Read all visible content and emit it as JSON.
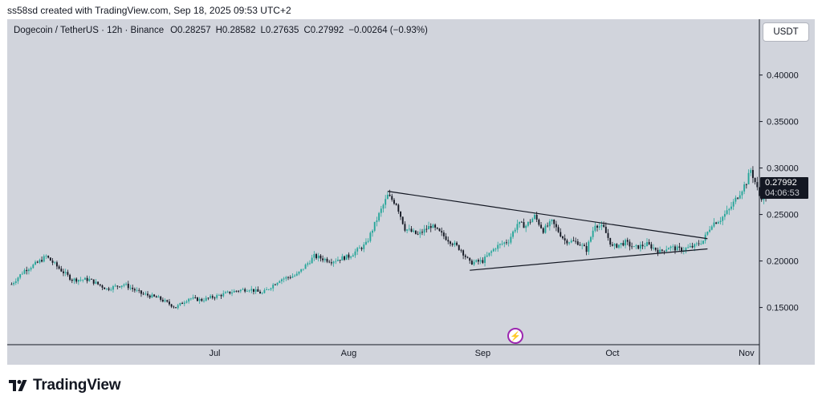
{
  "caption": "ss58sd created with TradingView.com, Sep 18, 2025 09:53 UTC+2",
  "legend": {
    "symbol": "Dogecoin / TetherUS · 12h · Binance",
    "open": "O0.28257",
    "high": "H0.28582",
    "low": "L0.27635",
    "close": "C0.27992",
    "change": "−0.00264 (−0.93%)"
  },
  "currency": "USDT",
  "last_price": "0.27992",
  "countdown": "04:06:53",
  "brand": "TradingView",
  "colors": {
    "background": "#d1d4dc",
    "up_candle": "#26a69a",
    "down_candle": "#131722",
    "axis_line": "#131722",
    "price_tag": "#131722",
    "event_badge": "#9c27b0"
  },
  "icons": [
    "flash-icon",
    "tradingview-logo-icon"
  ],
  "chart_data": {
    "type": "candlestick",
    "interval": "12h",
    "symbol": "DOGEUSDT",
    "y_axis": {
      "labels": [
        "0.40000",
        "0.35000",
        "0.30000",
        "0.25000",
        "0.20000",
        "0.15000"
      ],
      "ticks": [
        0.4,
        0.35,
        0.3,
        0.25,
        0.2,
        0.15
      ],
      "range": [
        0.11,
        0.46
      ]
    },
    "x_axis": {
      "labels": [
        "Jul",
        "Aug",
        "Sep",
        "Oct",
        "Nov"
      ],
      "dates": [
        "2025-07-01",
        "2025-08-01",
        "2025-09-01",
        "2025-10-01",
        "2025-11-01"
      ],
      "range": [
        "2025-05-14",
        "2025-11-04"
      ]
    },
    "path_anchors": [
      [
        "2025-05-15",
        0.175
      ],
      [
        "2025-05-18",
        0.19
      ],
      [
        "2025-05-21",
        0.198
      ],
      [
        "2025-05-23",
        0.205
      ],
      [
        "2025-05-26",
        0.192
      ],
      [
        "2025-05-29",
        0.18
      ],
      [
        "2025-06-02",
        0.18
      ],
      [
        "2025-06-06",
        0.17
      ],
      [
        "2025-06-10",
        0.175
      ],
      [
        "2025-06-14",
        0.165
      ],
      [
        "2025-06-18",
        0.16
      ],
      [
        "2025-06-22",
        0.15
      ],
      [
        "2025-06-25",
        0.16
      ],
      [
        "2025-06-28",
        0.158
      ],
      [
        "2025-07-02",
        0.163
      ],
      [
        "2025-07-06",
        0.168
      ],
      [
        "2025-07-09",
        0.17
      ],
      [
        "2025-07-12",
        0.165
      ],
      [
        "2025-07-16",
        0.18
      ],
      [
        "2025-07-20",
        0.185
      ],
      [
        "2025-07-24",
        0.205
      ],
      [
        "2025-07-28",
        0.2
      ],
      [
        "2025-08-01",
        0.205
      ],
      [
        "2025-08-05",
        0.218
      ],
      [
        "2025-08-08",
        0.25
      ],
      [
        "2025-08-10",
        0.27
      ],
      [
        "2025-08-12",
        0.262
      ],
      [
        "2025-08-14",
        0.235
      ],
      [
        "2025-08-17",
        0.228
      ],
      [
        "2025-08-20",
        0.238
      ],
      [
        "2025-08-24",
        0.223
      ],
      [
        "2025-08-27",
        0.212
      ],
      [
        "2025-08-29",
        0.198
      ],
      [
        "2025-09-01",
        0.2
      ],
      [
        "2025-09-04",
        0.215
      ],
      [
        "2025-09-07",
        0.222
      ],
      [
        "2025-09-09",
        0.24
      ],
      [
        "2025-09-11",
        0.238
      ],
      [
        "2025-09-13",
        0.248
      ],
      [
        "2025-09-15",
        0.233
      ],
      [
        "2025-09-17",
        0.242
      ],
      [
        "2025-09-20",
        0.222
      ],
      [
        "2025-09-23",
        0.22
      ],
      [
        "2025-09-25",
        0.212
      ],
      [
        "2025-09-27",
        0.24
      ],
      [
        "2025-09-29",
        0.235
      ],
      [
        "2025-10-01",
        0.215
      ],
      [
        "2025-10-04",
        0.22
      ],
      [
        "2025-10-06",
        0.214
      ],
      [
        "2025-10-09",
        0.218
      ],
      [
        "2025-10-12",
        0.21
      ],
      [
        "2025-10-14",
        0.215
      ],
      [
        "2025-10-17",
        0.212
      ],
      [
        "2025-10-20",
        0.216
      ],
      [
        "2025-10-22",
        0.222
      ],
      [
        "2025-10-24",
        0.24
      ],
      [
        "2025-10-26",
        0.245
      ],
      [
        "2025-10-28",
        0.255
      ],
      [
        "2025-10-30",
        0.27
      ],
      [
        "2025-11-01",
        0.285
      ],
      [
        "2025-11-02",
        0.298
      ],
      [
        "2025-11-03",
        0.285
      ],
      [
        "2025-11-04",
        0.27
      ],
      [
        "2025-11-05",
        0.268
      ],
      [
        "2025-11-06",
        0.27
      ],
      [
        "2025-11-07",
        0.28
      ]
    ],
    "trendlines": [
      {
        "name": "triangle-upper",
        "points": [
          [
            "2025-08-10",
            0.275
          ],
          [
            "2025-10-23",
            0.224
          ]
        ]
      },
      {
        "name": "triangle-lower",
        "points": [
          [
            "2025-08-29",
            0.19
          ],
          [
            "2025-10-23",
            0.213
          ]
        ]
      }
    ],
    "last": {
      "open": 0.28257,
      "high": 0.28582,
      "low": 0.27635,
      "close": 0.27992,
      "change": -0.00264,
      "change_pct": -0.93
    },
    "grid": false,
    "legend_position": "top-left"
  }
}
